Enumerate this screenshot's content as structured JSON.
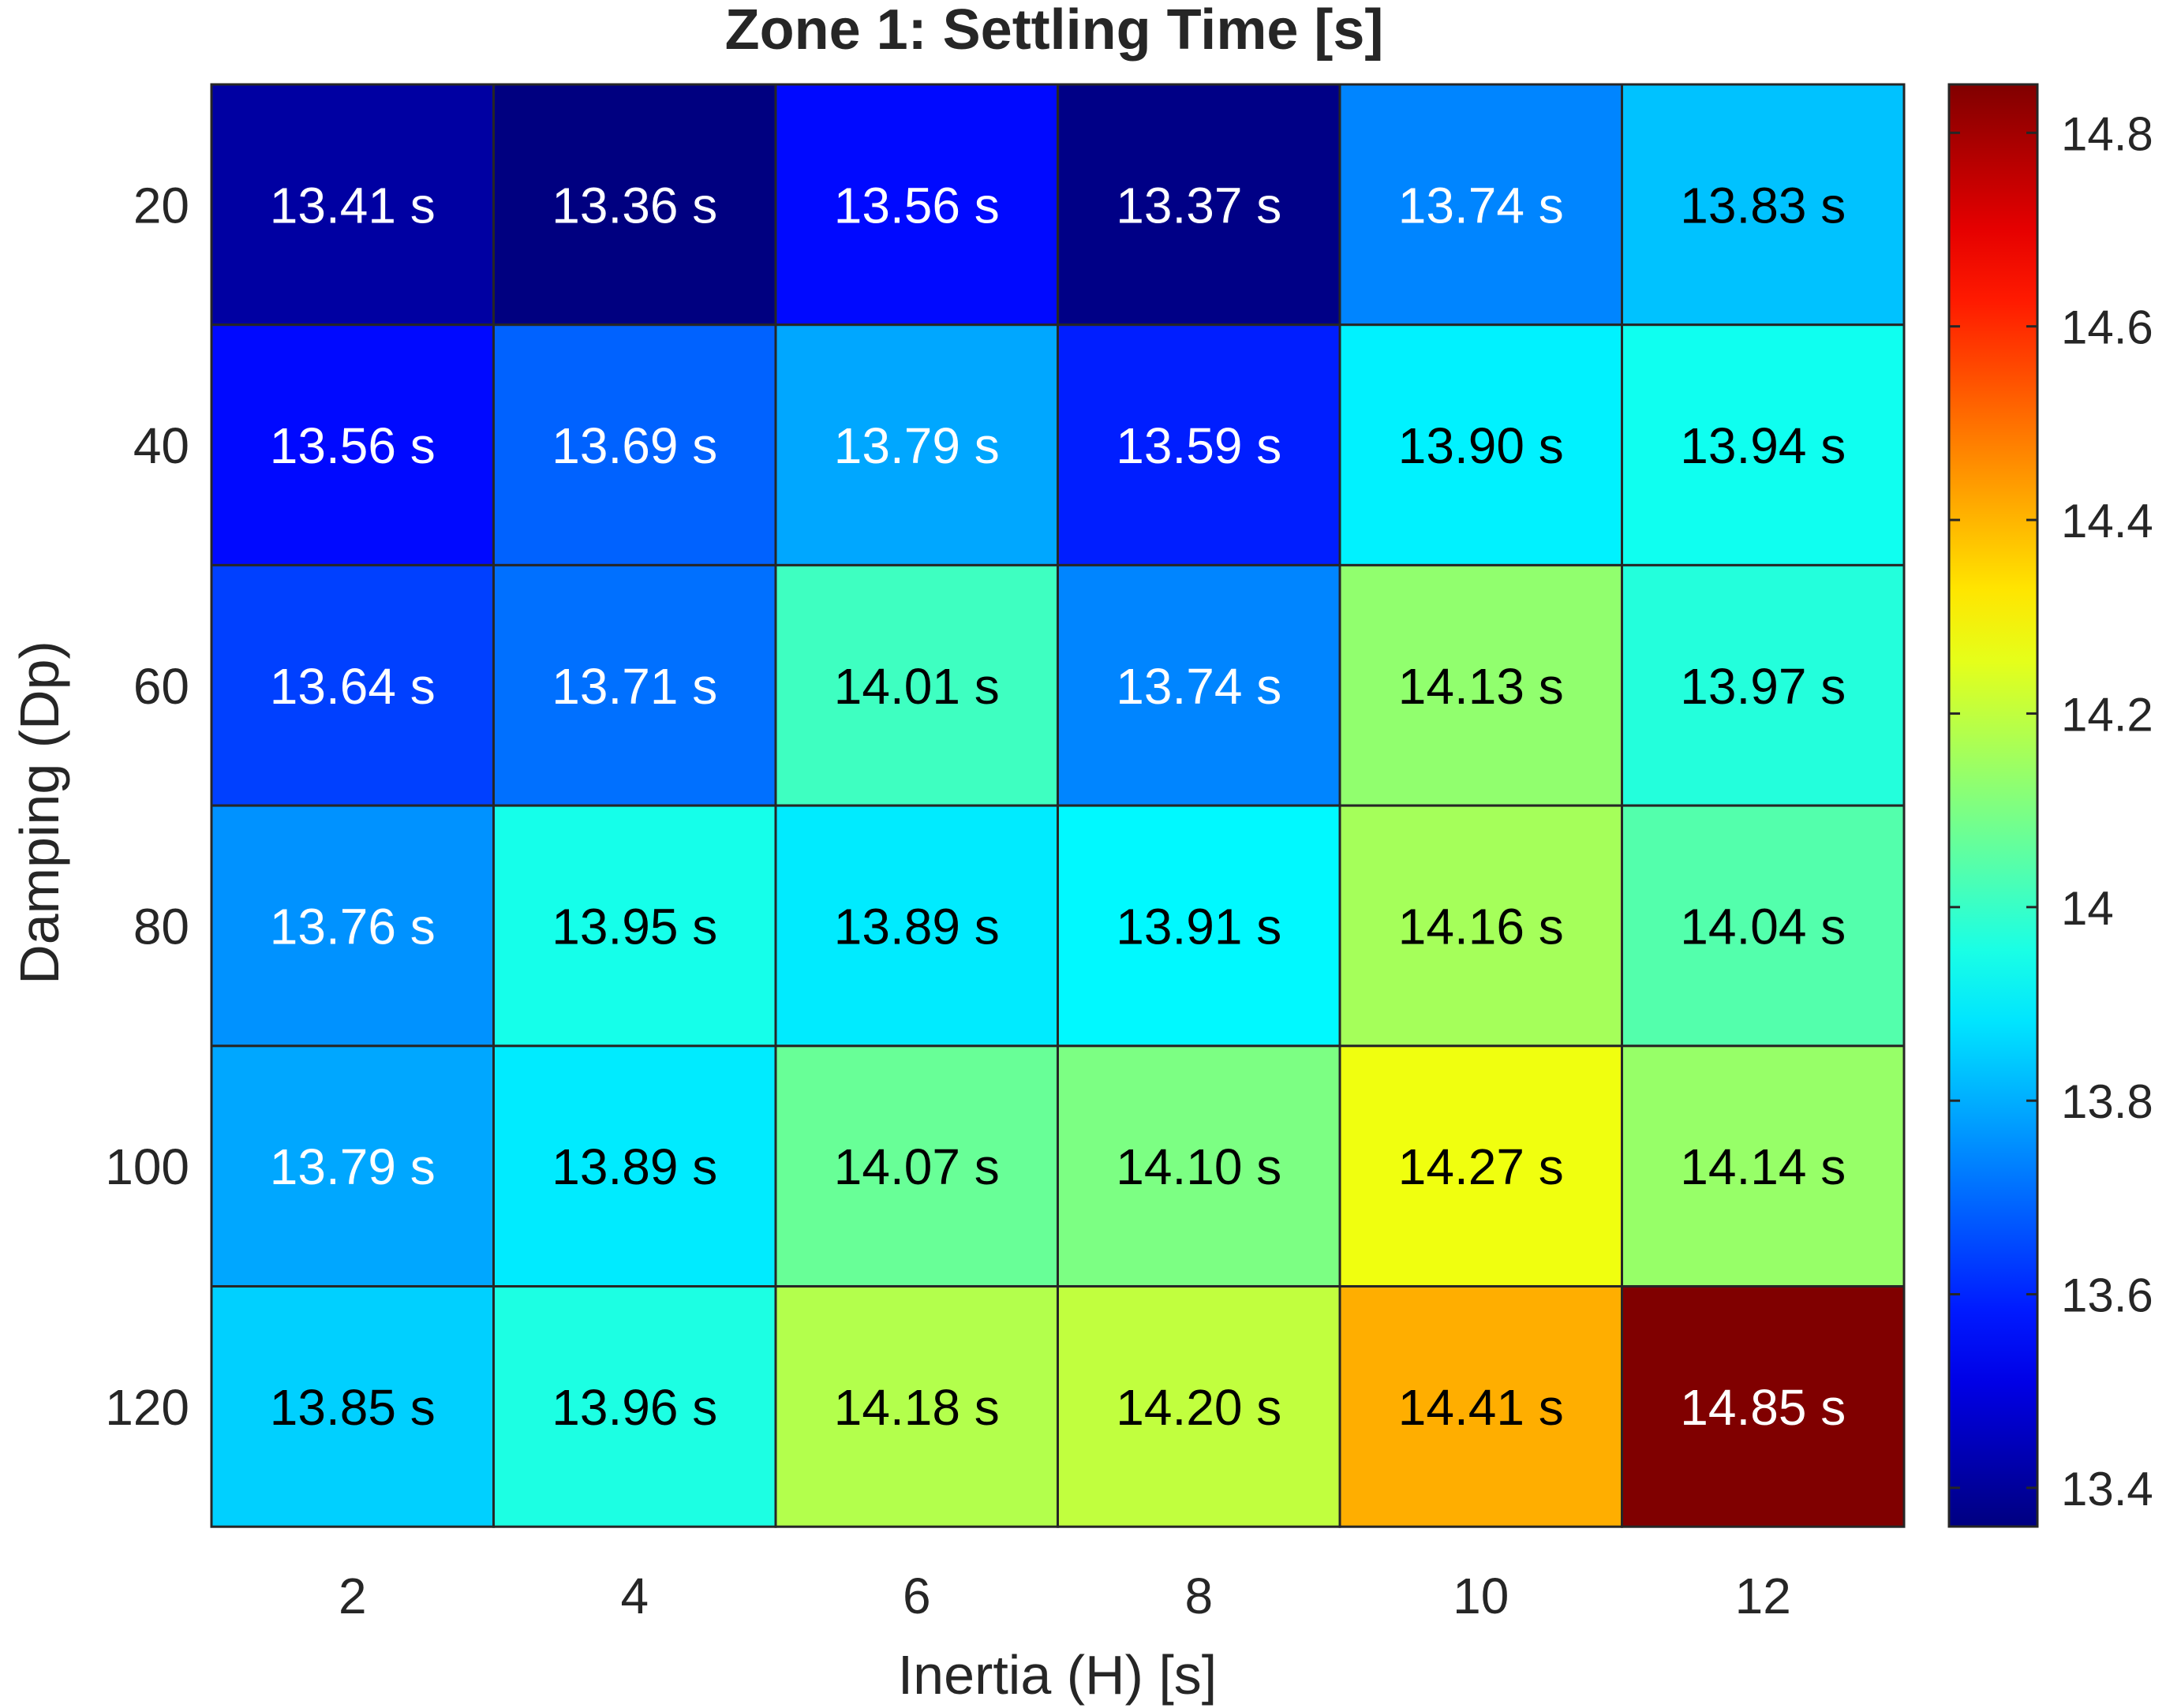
{
  "chart_data": {
    "type": "heatmap",
    "title": "Zone 1: Settling Time [s]",
    "xlabel": "Inertia (H) [s]",
    "ylabel": "Damping (Dp)",
    "x_categories": [
      "2",
      "4",
      "6",
      "8",
      "10",
      "12"
    ],
    "y_categories": [
      "20",
      "40",
      "60",
      "80",
      "100",
      "120"
    ],
    "values": [
      [
        13.41,
        13.36,
        13.56,
        13.37,
        13.74,
        13.83
      ],
      [
        13.56,
        13.69,
        13.79,
        13.59,
        13.9,
        13.94
      ],
      [
        13.64,
        13.71,
        14.01,
        13.74,
        14.13,
        13.97
      ],
      [
        13.76,
        13.95,
        13.89,
        13.91,
        14.16,
        14.04
      ],
      [
        13.79,
        13.89,
        14.07,
        14.1,
        14.27,
        14.14
      ],
      [
        13.85,
        13.96,
        14.18,
        14.2,
        14.41,
        14.85
      ]
    ],
    "cell_labels": [
      [
        "13.41 s",
        "13.36 s",
        "13.56 s",
        "13.37 s",
        "13.74 s",
        "13.83 s"
      ],
      [
        "13.56 s",
        "13.69 s",
        "13.79 s",
        "13.59 s",
        "13.90 s",
        "13.94 s"
      ],
      [
        "13.64 s",
        "13.71 s",
        "14.01 s",
        "13.74 s",
        "14.13 s",
        "13.97 s"
      ],
      [
        "13.76 s",
        "13.95 s",
        "13.89 s",
        "13.91 s",
        "14.16 s",
        "14.04 s"
      ],
      [
        "13.79 s",
        "13.89 s",
        "14.07 s",
        "14.10 s",
        "14.27 s",
        "14.14 s"
      ],
      [
        "13.85 s",
        "13.96 s",
        "14.18 s",
        "14.20 s",
        "14.41 s",
        "14.85 s"
      ]
    ],
    "colorbar": {
      "colormap": "jet",
      "range": [
        13.36,
        14.85
      ],
      "ticks": [
        13.4,
        13.6,
        13.8,
        14,
        14.2,
        14.4,
        14.6,
        14.8
      ],
      "tick_labels": [
        "13.4",
        "13.6",
        "13.8",
        "14",
        "14.2",
        "14.4",
        "14.6",
        "14.8"
      ]
    },
    "label_color_dark": "#000000",
    "label_color_light": "#ffffff",
    "grid_line_color": "#262626"
  }
}
